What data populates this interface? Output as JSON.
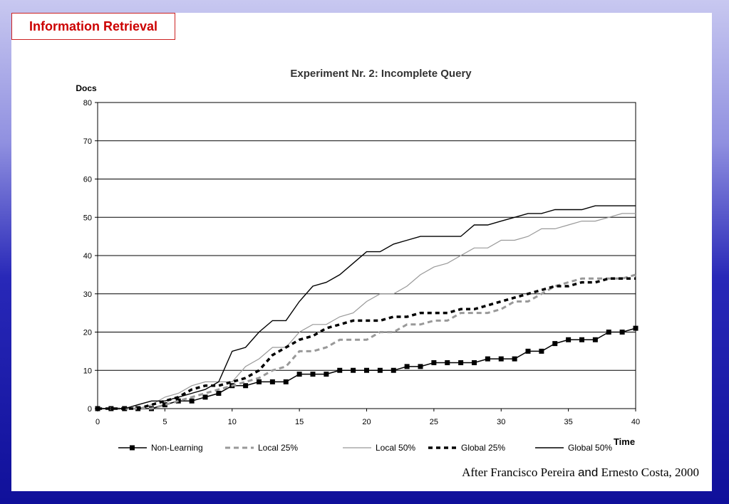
{
  "slide": {
    "header_title": "Information Retrieval",
    "credit_part1": "After Francisco Pereira ",
    "credit_and": "and",
    "credit_part2": " Ernesto Costa, 2000"
  },
  "colors": {
    "header_text": "#cc0000",
    "header_border": "#cc2222",
    "slide_bg": "#ffffff",
    "backdrop_top": "#c8c8f0",
    "backdrop_bottom": "#10109a"
  },
  "chart_data": {
    "type": "line",
    "title": "Experiment Nr. 2: Incomplete Query",
    "xlabel": "Time",
    "ylabel": "Docs",
    "xlim": [
      0,
      40
    ],
    "ylim": [
      0,
      80
    ],
    "xticks": [
      0,
      5,
      10,
      15,
      20,
      25,
      30,
      35,
      40
    ],
    "yticks": [
      0,
      10,
      20,
      30,
      40,
      50,
      60,
      70,
      80
    ],
    "grid": "horizontal",
    "legend_position": "bottom",
    "series": [
      {
        "name": "Non-Learning",
        "style": "solid-square-markers",
        "color": "#000000",
        "x": [
          0,
          1,
          2,
          3,
          4,
          5,
          6,
          7,
          8,
          9,
          10,
          11,
          12,
          13,
          14,
          15,
          16,
          17,
          18,
          19,
          20,
          21,
          22,
          23,
          24,
          25,
          26,
          27,
          28,
          29,
          30,
          31,
          32,
          33,
          34,
          35,
          36,
          37,
          38,
          39,
          40
        ],
        "values": [
          0,
          0,
          0,
          0,
          0,
          1,
          2,
          2,
          3,
          4,
          6,
          6,
          7,
          7,
          7,
          9,
          9,
          9,
          10,
          10,
          10,
          10,
          10,
          11,
          11,
          12,
          12,
          12,
          12,
          13,
          13,
          13,
          15,
          15,
          17,
          18,
          18,
          18,
          20,
          20,
          21
        ]
      },
      {
        "name": "Local 25%",
        "style": "dashed",
        "color": "#999999",
        "x": [
          0,
          1,
          2,
          3,
          4,
          5,
          6,
          7,
          8,
          9,
          10,
          11,
          12,
          13,
          14,
          15,
          16,
          17,
          18,
          19,
          20,
          21,
          22,
          23,
          24,
          25,
          26,
          27,
          28,
          29,
          30,
          31,
          32,
          33,
          34,
          35,
          36,
          37,
          38,
          39,
          40
        ],
        "values": [
          0,
          0,
          0,
          0,
          0,
          1,
          2,
          3,
          4,
          5,
          6,
          7,
          8,
          10,
          11,
          15,
          15,
          16,
          18,
          18,
          18,
          20,
          20,
          22,
          22,
          23,
          23,
          25,
          25,
          25,
          26,
          28,
          28,
          30,
          32,
          33,
          34,
          34,
          34,
          34,
          35
        ]
      },
      {
        "name": "Local 50%",
        "style": "thin-solid",
        "color": "#999999",
        "x": [
          0,
          1,
          2,
          3,
          4,
          5,
          6,
          7,
          8,
          9,
          10,
          11,
          12,
          13,
          14,
          15,
          16,
          17,
          18,
          19,
          20,
          21,
          22,
          23,
          24,
          25,
          26,
          27,
          28,
          29,
          30,
          31,
          32,
          33,
          34,
          35,
          36,
          37,
          38,
          39,
          40
        ],
        "values": [
          0,
          0,
          0,
          0,
          1,
          3,
          4,
          6,
          7,
          7,
          7,
          11,
          13,
          16,
          16,
          20,
          22,
          22,
          24,
          25,
          28,
          30,
          30,
          32,
          35,
          37,
          38,
          40,
          42,
          42,
          44,
          44,
          45,
          47,
          47,
          48,
          49,
          49,
          50,
          51,
          51
        ]
      },
      {
        "name": "Global 25%",
        "style": "bold-dashed",
        "color": "#000000",
        "x": [
          0,
          1,
          2,
          3,
          4,
          5,
          6,
          7,
          8,
          9,
          10,
          11,
          12,
          13,
          14,
          15,
          16,
          17,
          18,
          19,
          20,
          21,
          22,
          23,
          24,
          25,
          26,
          27,
          28,
          29,
          30,
          31,
          32,
          33,
          34,
          35,
          36,
          37,
          38,
          39,
          40
        ],
        "values": [
          0,
          0,
          0,
          0,
          1,
          2,
          3,
          5,
          6,
          6,
          7,
          8,
          10,
          14,
          16,
          18,
          19,
          21,
          22,
          23,
          23,
          23,
          24,
          24,
          25,
          25,
          25,
          26,
          26,
          27,
          28,
          29,
          30,
          31,
          32,
          32,
          33,
          33,
          34,
          34,
          34
        ]
      },
      {
        "name": "Global 50%",
        "style": "solid",
        "color": "#000000",
        "x": [
          0,
          1,
          2,
          3,
          4,
          5,
          6,
          7,
          8,
          9,
          10,
          11,
          12,
          13,
          14,
          15,
          16,
          17,
          18,
          19,
          20,
          21,
          22,
          23,
          24,
          25,
          26,
          27,
          28,
          29,
          30,
          31,
          32,
          33,
          34,
          35,
          36,
          37,
          38,
          39,
          40
        ],
        "values": [
          0,
          0,
          0,
          1,
          2,
          2,
          3,
          4,
          5,
          7,
          15,
          16,
          20,
          23,
          23,
          28,
          32,
          33,
          35,
          38,
          41,
          41,
          43,
          44,
          45,
          45,
          45,
          45,
          48,
          48,
          49,
          50,
          51,
          51,
          52,
          52,
          52,
          53,
          53,
          53,
          53
        ]
      }
    ]
  }
}
